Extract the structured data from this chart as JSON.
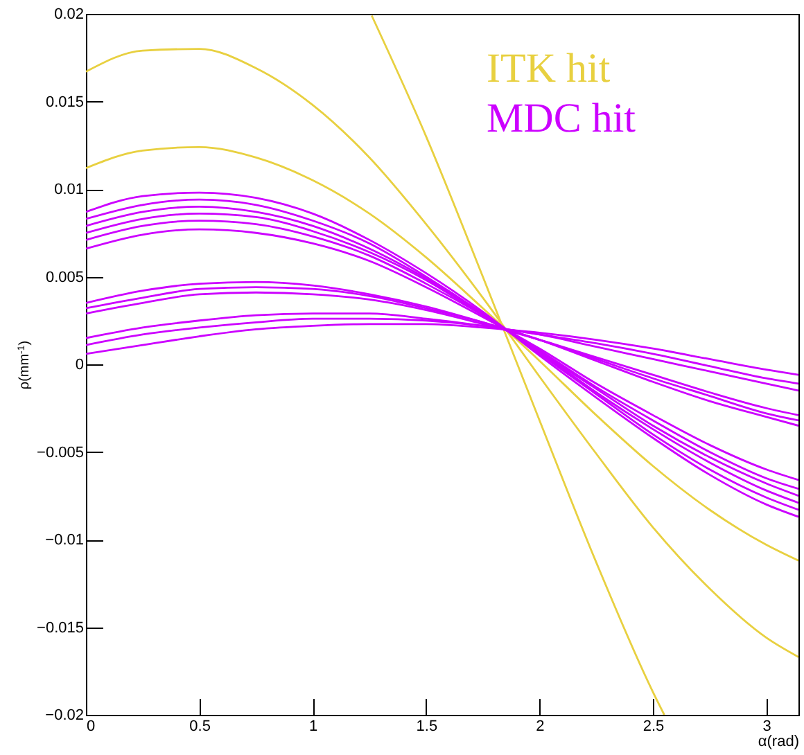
{
  "chart_data": {
    "type": "line",
    "xlabel": "α(rad)",
    "ylabel": "ρ(mm$^{-1}$)",
    "x": [
      0,
      0.25,
      0.5,
      0.75,
      1,
      1.25,
      1.5,
      1.75,
      2,
      2.25,
      2.5,
      2.75,
      3,
      3.1416
    ],
    "xlim": [
      0,
      3.1416
    ],
    "ylim": [
      -0.02,
      0.02
    ],
    "xticks": [
      0,
      0.5,
      1,
      1.5,
      2,
      2.5,
      3
    ],
    "yticks": [
      -0.02,
      -0.015,
      -0.01,
      -0.005,
      0,
      0.005,
      0.01,
      0.015,
      0.02
    ],
    "grid": false,
    "legend": "top right",
    "line_style": "solid",
    "series": [
      {
        "name": "ITK hit",
        "color": "#e8d040",
        "values": [
          0.0167,
          0.0179,
          0.018,
          0.0169,
          0.0148,
          0.0118,
          0.008,
          0.0038,
          -0.0007,
          -0.0051,
          -0.0093,
          -0.0128,
          -0.0156,
          -0.0167
        ]
      },
      {
        "color": "#e8d040",
        "values": [
          0.0112,
          0.0122,
          0.0124,
          0.0118,
          0.0105,
          0.0086,
          0.0061,
          0.0032,
          0.0002,
          -0.0029,
          -0.0058,
          -0.0083,
          -0.0103,
          -0.0112
        ]
      },
      {
        "color": "#e8d040",
        "x": [
          1.26,
          1.5,
          1.75,
          2,
          2.25,
          2.5,
          2.55
        ],
        "values": [
          0.0199,
          0.013,
          0.005,
          -0.0032,
          -0.0113,
          -0.0187,
          -0.02
        ]
      },
      {
        "name": "MDC hit",
        "color": "#cc00ff",
        "values": [
          0.0087,
          0.0096,
          0.0098,
          0.0095,
          0.0086,
          0.0071,
          0.0052,
          0.003,
          0.0005,
          -0.0019,
          -0.0042,
          -0.0063,
          -0.008,
          -0.0087
        ]
      },
      {
        "color": "#cc00ff",
        "values": [
          0.0083,
          0.0091,
          0.0094,
          0.0091,
          0.0082,
          0.0069,
          0.005,
          0.0029,
          0.0006,
          -0.0017,
          -0.004,
          -0.006,
          -0.0076,
          -0.0083
        ]
      },
      {
        "color": "#cc00ff",
        "values": [
          0.0079,
          0.0087,
          0.009,
          0.0087,
          0.0079,
          0.0066,
          0.0049,
          0.0029,
          0.0007,
          -0.0016,
          -0.0037,
          -0.0056,
          -0.0072,
          -0.0079
        ]
      },
      {
        "color": "#cc00ff",
        "values": [
          0.0075,
          0.0083,
          0.0086,
          0.0084,
          0.0076,
          0.0064,
          0.0048,
          0.0028,
          0.0007,
          -0.0014,
          -0.0035,
          -0.0053,
          -0.0068,
          -0.0075
        ]
      },
      {
        "color": "#cc00ff",
        "values": [
          0.0071,
          0.0079,
          0.0082,
          0.008,
          0.0073,
          0.0062,
          0.0046,
          0.0028,
          0.0008,
          -0.0013,
          -0.0032,
          -0.005,
          -0.0065,
          -0.0071
        ]
      },
      {
        "color": "#cc00ff",
        "values": [
          0.0066,
          0.0074,
          0.0077,
          0.0075,
          0.0069,
          0.0059,
          0.0044,
          0.0027,
          0.0009,
          -0.0011,
          -0.0029,
          -0.0046,
          -0.006,
          -0.0066
        ]
      },
      {
        "color": "#cc00ff",
        "values": [
          0.0035,
          0.0042,
          0.0046,
          0.0047,
          0.0045,
          0.004,
          0.0033,
          0.0024,
          0.0014,
          0.0002,
          -0.001,
          -0.0021,
          -0.003,
          -0.0035
        ]
      },
      {
        "color": "#cc00ff",
        "values": [
          0.0032,
          0.0038,
          0.0043,
          0.0044,
          0.0043,
          0.0039,
          0.0032,
          0.0024,
          0.0014,
          0.0003,
          -0.0008,
          -0.0018,
          -0.0028,
          -0.0032
        ]
      },
      {
        "color": "#cc00ff",
        "values": [
          0.0029,
          0.0035,
          0.004,
          0.0041,
          0.004,
          0.0037,
          0.0031,
          0.0023,
          0.0014,
          0.0004,
          -0.0006,
          -0.0016,
          -0.0025,
          -0.0029
        ]
      },
      {
        "color": "#cc00ff",
        "values": [
          0.0015,
          0.0021,
          0.0025,
          0.0028,
          0.0029,
          0.0029,
          0.0026,
          0.0022,
          0.0017,
          0.001,
          0.0003,
          -0.0004,
          -0.0011,
          -0.0015
        ]
      },
      {
        "color": "#cc00ff",
        "values": [
          0.0011,
          0.0017,
          0.0021,
          0.0024,
          0.0026,
          0.0026,
          0.0025,
          0.0022,
          0.0017,
          0.0012,
          0.0006,
          -0.0001,
          -0.0008,
          -0.0011
        ]
      },
      {
        "color": "#cc00ff",
        "values": [
          0.0006,
          0.0011,
          0.0016,
          0.002,
          0.0022,
          0.0023,
          0.0023,
          0.0021,
          0.0018,
          0.0014,
          0.0009,
          0.0003,
          -0.0003,
          -0.0006
        ]
      }
    ]
  }
}
